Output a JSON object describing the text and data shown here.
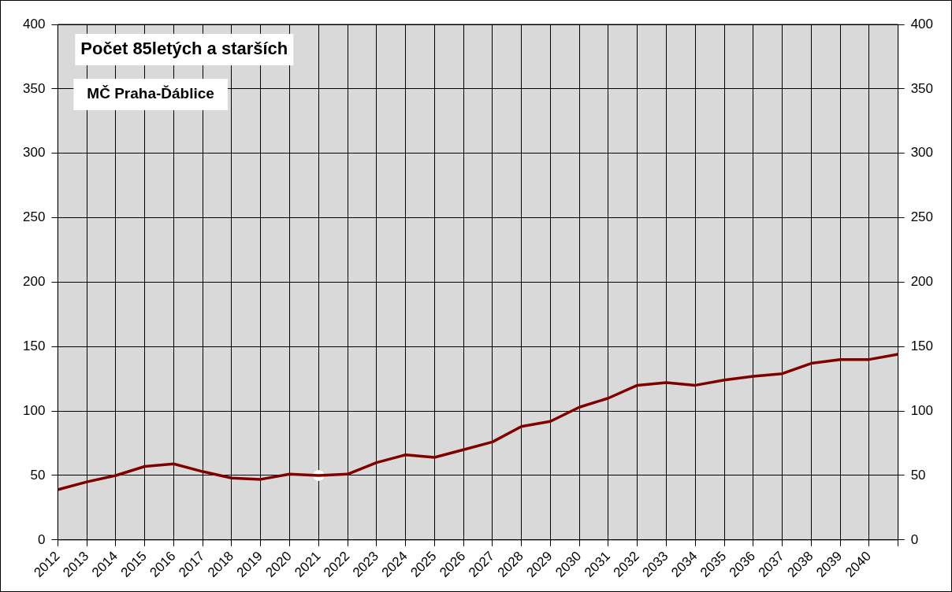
{
  "chart_data": {
    "type": "line",
    "title": "Počet 85letých a starších",
    "subtitle": "MČ Praha-Ďáblice",
    "categories": [
      "2012",
      "2013",
      "2014",
      "2015",
      "2016",
      "2017",
      "2018",
      "2019",
      "2020",
      "2021",
      "2022",
      "2023",
      "2024",
      "2025",
      "2026",
      "2027",
      "2028",
      "2029",
      "2030",
      "2031",
      "2032",
      "2033",
      "2034",
      "2035",
      "2036",
      "2037",
      "2038",
      "2039",
      "2040",
      null
    ],
    "series": [
      {
        "color": "#800000",
        "values": [
          39,
          45,
          50,
          57,
          59,
          53,
          48,
          47,
          51,
          50,
          51,
          60,
          66,
          64,
          70,
          76,
          88,
          92,
          103,
          110,
          120,
          122,
          120,
          124,
          127,
          129,
          137,
          140,
          140,
          144
        ]
      },
      {
        "type": "scatter",
        "marker": "circle",
        "color": "#ffffff",
        "values": [
          null,
          null,
          null,
          null,
          null,
          null,
          null,
          null,
          null,
          50,
          null,
          null,
          null,
          null,
          null,
          null,
          null,
          null,
          null,
          null,
          null,
          null,
          null,
          null,
          null,
          null,
          null,
          null,
          null,
          null
        ]
      }
    ],
    "ylim": [
      0,
      400
    ],
    "yticks": [
      0,
      50,
      100,
      150,
      200,
      250,
      300,
      350,
      400
    ],
    "y2lim": [
      0,
      400
    ],
    "y2ticks": [
      0,
      50,
      100,
      150,
      200,
      250,
      300,
      350,
      400
    ],
    "grid": true,
    "legend": false,
    "line_style": "solid"
  }
}
